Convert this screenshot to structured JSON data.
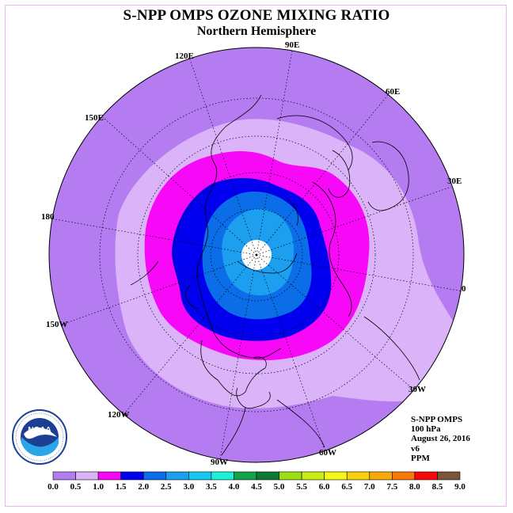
{
  "title": "S-NPP OMPS OZONE MIXING RATIO",
  "subtitle": "Northern Hemisphere",
  "longitude_labels": [
    "120E",
    "90E",
    "60E",
    "150E",
    "30E",
    "180",
    "0",
    "150W",
    "30W",
    "120W",
    "60W",
    "90W"
  ],
  "info": {
    "instrument": "S-NPP OMPS",
    "level": "100 hPa",
    "date": "August 26, 2016",
    "version": "v6",
    "units": "PPM"
  },
  "logo": {
    "text": "NOAA"
  },
  "colorbar": {
    "ticks": [
      "0.0",
      "0.5",
      "1.0",
      "1.5",
      "2.0",
      "2.5",
      "3.0",
      "3.5",
      "4.0",
      "4.5",
      "5.0",
      "5.5",
      "6.0",
      "6.5",
      "7.0",
      "7.5",
      "8.0",
      "8.5",
      "9.0"
    ],
    "colors": [
      "#b57cf2",
      "#dab3f8",
      "#f708f7",
      "#0000ee",
      "#0b6ee8",
      "#1d9ff0",
      "#18c7f0",
      "#1cf0d8",
      "#16a24a",
      "#0c7a34",
      "#9bde14",
      "#c8ee14",
      "#f7f716",
      "#f8d00c",
      "#f8a808",
      "#f87808",
      "#f80808",
      "#7b5538"
    ]
  },
  "map": {
    "projection": "north polar stereographic",
    "contour_levels_shown": [
      "0.0–0.5",
      "0.5–1.0",
      "1.0–1.5",
      "1.5–2.0",
      "2.0–2.5",
      "2.5–3.0"
    ]
  }
}
